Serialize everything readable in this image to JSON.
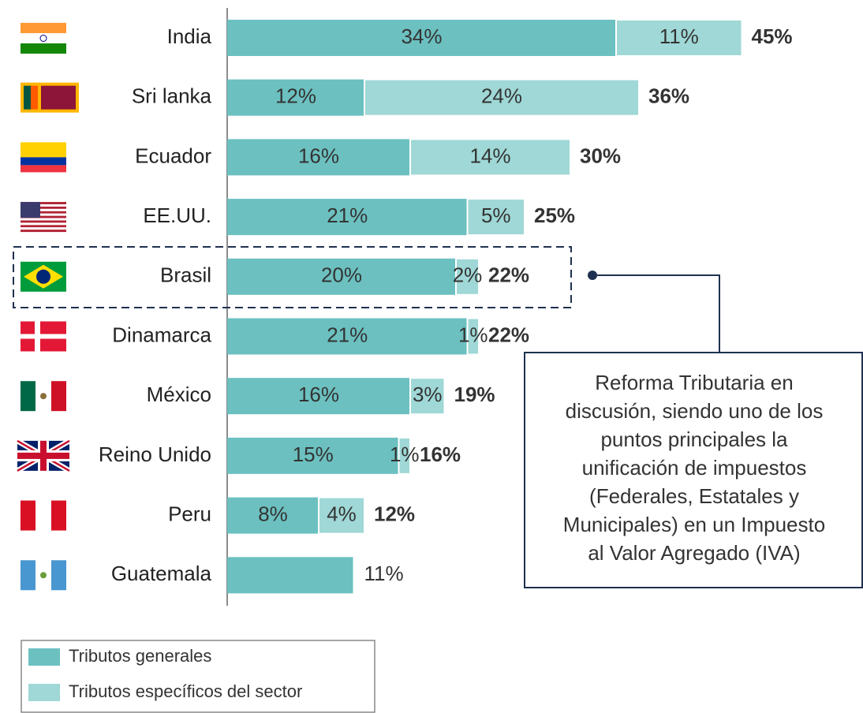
{
  "chart_data": {
    "type": "stacked-barh",
    "categories": [
      "India",
      "Sri lanka",
      "Ecuador",
      "EE.UU.",
      "Brasil",
      "Dinamarca",
      "México",
      "Reino Unido",
      "Peru",
      "Guatemala"
    ],
    "series": [
      {
        "name": "Tributos generales",
        "color": "#6cc0c0",
        "values": [
          34,
          12,
          16,
          21,
          20,
          21,
          16,
          15,
          8,
          11
        ],
        "value_labels": [
          "34%",
          "12%",
          "16%",
          "21%",
          "20%",
          "21%",
          "16%",
          "15%",
          "8%",
          null
        ]
      },
      {
        "name": "Tributos específicos del sector",
        "color": "#9fd8d6",
        "values": [
          11,
          24,
          14,
          5,
          2,
          1,
          3,
          1,
          4,
          null
        ],
        "value_labels": [
          "11%",
          "24%",
          "14%",
          "5%",
          "2%",
          "1%",
          "3%",
          "1%",
          "4%",
          null
        ]
      }
    ],
    "totals": [
      45,
      36,
      30,
      25,
      22,
      22,
      19,
      16,
      12,
      11
    ],
    "total_labels": [
      "45%",
      "36%",
      "30%",
      "25%",
      "22%",
      "22%",
      "19%",
      "16%",
      "12%",
      "11%"
    ],
    "annotation": [
      "Reforma Tributaria en",
      "discusión, siendo uno de los",
      "puntos principales la",
      "unificación de impuestos",
      "(Federales, Estatales y",
      "Municipales) en un Impuesto",
      "al Valor Agregado (IVA)"
    ]
  }
}
